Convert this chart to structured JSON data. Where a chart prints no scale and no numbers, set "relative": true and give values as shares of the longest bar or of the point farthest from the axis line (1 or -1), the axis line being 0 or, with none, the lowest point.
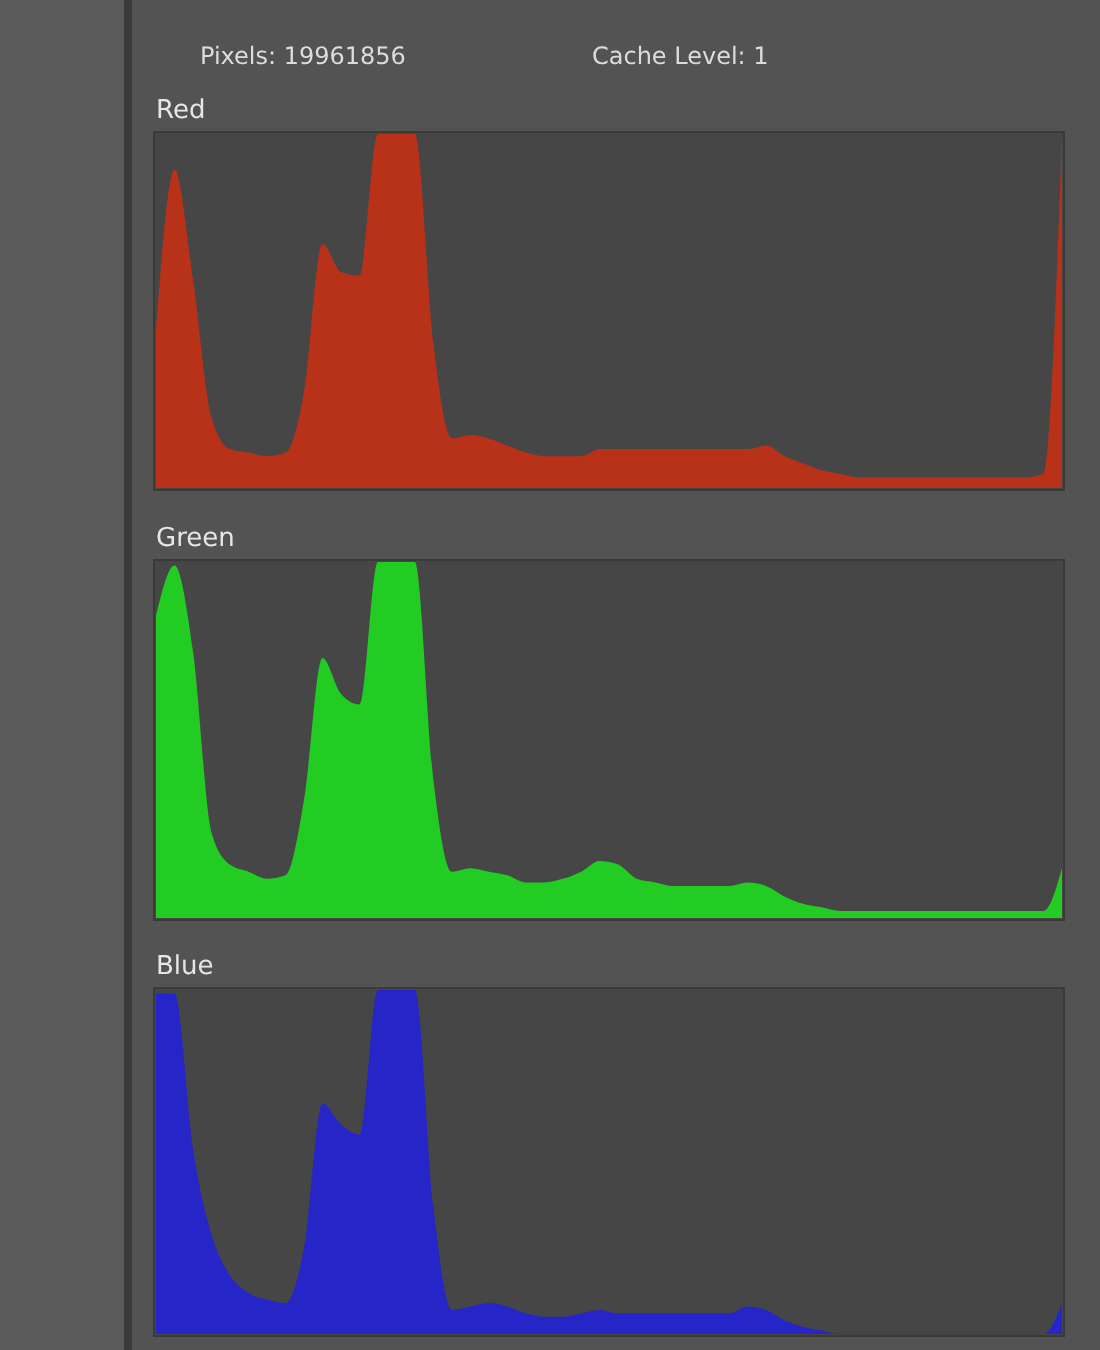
{
  "chart_data": [
    {
      "type": "area",
      "title": "Red",
      "relative": true,
      "color": "#b8321a",
      "annotations": [
        "Pixels:  19961856",
        "Cache Level:  1"
      ],
      "categories": [
        null,
        null,
        null,
        null,
        null,
        null,
        null,
        null,
        null,
        null,
        null,
        null,
        null,
        null,
        null,
        null,
        null,
        null,
        null,
        null,
        null,
        null,
        null,
        null,
        null,
        null,
        null,
        null,
        null,
        null,
        null,
        null,
        null,
        null,
        null,
        null,
        null,
        null,
        null,
        null,
        null,
        null,
        null,
        null,
        null,
        null,
        null,
        null,
        null,
        null
      ],
      "values": [
        0.45,
        0.9,
        0.59,
        0.2,
        0.11,
        0.1,
        0.09,
        0.1,
        0.27,
        0.69,
        0.61,
        0.6,
        1,
        1,
        1,
        0.41,
        0.14,
        0.15,
        0.14,
        0.12,
        0.1,
        0.09,
        0.09,
        0.09,
        0.11,
        0.11,
        0.11,
        0.11,
        0.11,
        0.11,
        0.11,
        0.11,
        0.11,
        0.12,
        0.09,
        0.07,
        0.05,
        0.04,
        0.03,
        0.03,
        0.03,
        0.03,
        0.03,
        0.03,
        0.03,
        0.03,
        0.03,
        0.03,
        0.04,
        0.99
      ]
    },
    {
      "type": "area",
      "title": "Green",
      "relative": true,
      "color": "#22cc22",
      "categories": [
        null,
        null,
        null,
        null,
        null,
        null,
        null,
        null,
        null,
        null,
        null,
        null,
        null,
        null,
        null,
        null,
        null,
        null,
        null,
        null,
        null,
        null,
        null,
        null,
        null,
        null,
        null,
        null,
        null,
        null,
        null,
        null,
        null,
        null,
        null,
        null,
        null,
        null,
        null,
        null,
        null,
        null,
        null,
        null,
        null,
        null,
        null,
        null,
        null,
        null
      ],
      "values": [
        0.85,
        0.99,
        0.75,
        0.24,
        0.15,
        0.13,
        0.11,
        0.12,
        0.33,
        0.73,
        0.63,
        0.6,
        1,
        1,
        1,
        0.39,
        0.13,
        0.14,
        0.13,
        0.12,
        0.1,
        0.1,
        0.11,
        0.13,
        0.16,
        0.15,
        0.11,
        0.1,
        0.09,
        0.09,
        0.09,
        0.09,
        0.1,
        0.09,
        0.06,
        0.04,
        0.03,
        0.02,
        0.02,
        0.02,
        0.02,
        0.02,
        0.02,
        0.02,
        0.02,
        0.02,
        0.02,
        0.02,
        0.02,
        0.14
      ]
    },
    {
      "type": "area",
      "title": "Blue",
      "relative": true,
      "color": "#2626c8",
      "categories": [
        null,
        null,
        null,
        null,
        null,
        null,
        null,
        null,
        null,
        null,
        null,
        null,
        null,
        null,
        null,
        null,
        null,
        null,
        null,
        null,
        null,
        null,
        null,
        null,
        null,
        null,
        null,
        null,
        null,
        null,
        null,
        null,
        null,
        null,
        null,
        null,
        null,
        null,
        null,
        null,
        null,
        null,
        null,
        null,
        null,
        null,
        null,
        null,
        null,
        null
      ],
      "values": [
        0.99,
        0.99,
        0.54,
        0.29,
        0.17,
        0.12,
        0.1,
        0.09,
        0.25,
        0.67,
        0.61,
        0.58,
        1,
        1,
        1,
        0.37,
        0.07,
        0.08,
        0.09,
        0.08,
        0.06,
        0.05,
        0.05,
        0.06,
        0.07,
        0.06,
        0.06,
        0.06,
        0.06,
        0.06,
        0.06,
        0.06,
        0.08,
        0.07,
        0.04,
        0.02,
        0.01,
        0,
        0,
        0,
        0,
        0,
        0,
        0,
        0,
        0,
        0,
        0,
        0,
        0.09
      ]
    }
  ]
}
